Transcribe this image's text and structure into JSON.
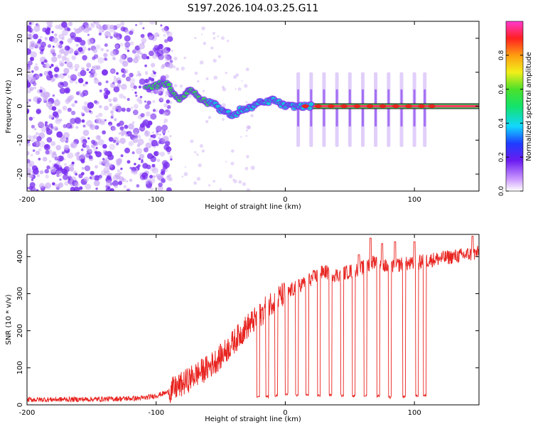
{
  "title": "S197.2026.104.03.25.G11",
  "colors": {
    "signal": "#e8231f",
    "ridge_core": "#e8231f",
    "ridge_edge": "#32d25a",
    "speckle": "#7a2ff0",
    "speckle_light": "#c9a8f5"
  },
  "spectrogram": {
    "xlabel": "Height of straight line (km)",
    "ylabel": "Frequency (Hz)",
    "xlim": [
      -200,
      150
    ],
    "ylim": [
      -25,
      25
    ],
    "xticks": [
      -200,
      -100,
      0,
      100
    ],
    "yticks": [
      -20,
      -10,
      0,
      10,
      20
    ],
    "colorbar": {
      "label": "Normalized spectral amplitude",
      "range": [
        0,
        1
      ],
      "ticks": [
        0.0,
        0.2,
        0.4,
        0.6,
        0.8
      ]
    }
  },
  "chart_data": [
    {
      "type": "heatmap",
      "title": "S197.2026.104.03.25.G11",
      "xlabel": "Height of straight line (km)",
      "ylabel": "Frequency (Hz)",
      "xlim": [
        -200,
        150
      ],
      "ylim": [
        -25,
        25
      ],
      "ridge": {
        "x": [
          -108,
          -100,
          -95,
          -90,
          -85,
          -80,
          -75,
          -70,
          -65,
          -60,
          -55,
          -50,
          -45,
          -40,
          -35,
          -30,
          -25,
          -20,
          -15,
          -10,
          -5,
          0,
          5,
          10,
          15,
          20,
          150
        ],
        "freq": [
          5,
          6,
          7,
          6,
          3,
          2,
          5,
          4,
          2,
          1,
          1,
          -1,
          -2,
          -3,
          -1,
          -1,
          0,
          1,
          1,
          2,
          1,
          0,
          0,
          0,
          0,
          0,
          0
        ]
      },
      "steady_line": {
        "freq": 0,
        "x_from": 10,
        "x_to": 150
      },
      "pulses_x": [
        10,
        20,
        30,
        40,
        50,
        60,
        70,
        80,
        90,
        100,
        108
      ]
    },
    {
      "type": "line",
      "xlabel": "Height of straight line (km)",
      "ylabel": "SNR (10 * v/v)",
      "xlim": [
        -200,
        150
      ],
      "ylim": [
        0,
        460
      ],
      "xticks": [
        -200,
        -100,
        0,
        100
      ],
      "yticks": [
        0,
        100,
        200,
        300,
        400
      ],
      "baseline": {
        "x": [
          -200,
          -150,
          -110,
          -100,
          -90,
          -80,
          -70,
          -60,
          -50,
          -40,
          -30,
          -20,
          -10,
          0,
          10,
          20,
          30,
          40,
          50,
          60,
          70,
          80,
          90,
          100,
          110,
          120,
          130,
          140,
          150
        ],
        "y": [
          14,
          15,
          18,
          25,
          35,
          55,
          80,
          100,
          130,
          170,
          210,
          240,
          280,
          300,
          320,
          340,
          360,
          350,
          360,
          370,
          390,
          370,
          380,
          380,
          390,
          395,
          400,
          405,
          410
        ]
      },
      "dips": [
        {
          "x": -21,
          "depth": 22
        },
        {
          "x": -14,
          "depth": 22
        },
        {
          "x": -7,
          "depth": 25
        },
        {
          "x": 1,
          "depth": 28
        },
        {
          "x": 9,
          "depth": 26
        },
        {
          "x": 17,
          "depth": 26
        },
        {
          "x": 26,
          "depth": 25
        },
        {
          "x": 35,
          "depth": 26
        },
        {
          "x": 44,
          "depth": 25
        },
        {
          "x": 53,
          "depth": 24
        },
        {
          "x": 62,
          "depth": 25
        },
        {
          "x": 72,
          "depth": 24
        },
        {
          "x": 81,
          "depth": 20
        },
        {
          "x": 92,
          "depth": 22
        },
        {
          "x": 102,
          "depth": 24
        },
        {
          "x": 108,
          "depth": 25
        }
      ],
      "peaks": [
        {
          "x": 57,
          "y": 405
        },
        {
          "x": 66,
          "y": 450
        },
        {
          "x": 75,
          "y": 435
        },
        {
          "x": 85,
          "y": 440
        },
        {
          "x": 100,
          "y": 440
        },
        {
          "x": 145,
          "y": 455
        }
      ]
    }
  ],
  "snr": {
    "xlabel": "Height of straight line (km)",
    "ylabel": "SNR (10 * v/v)"
  }
}
